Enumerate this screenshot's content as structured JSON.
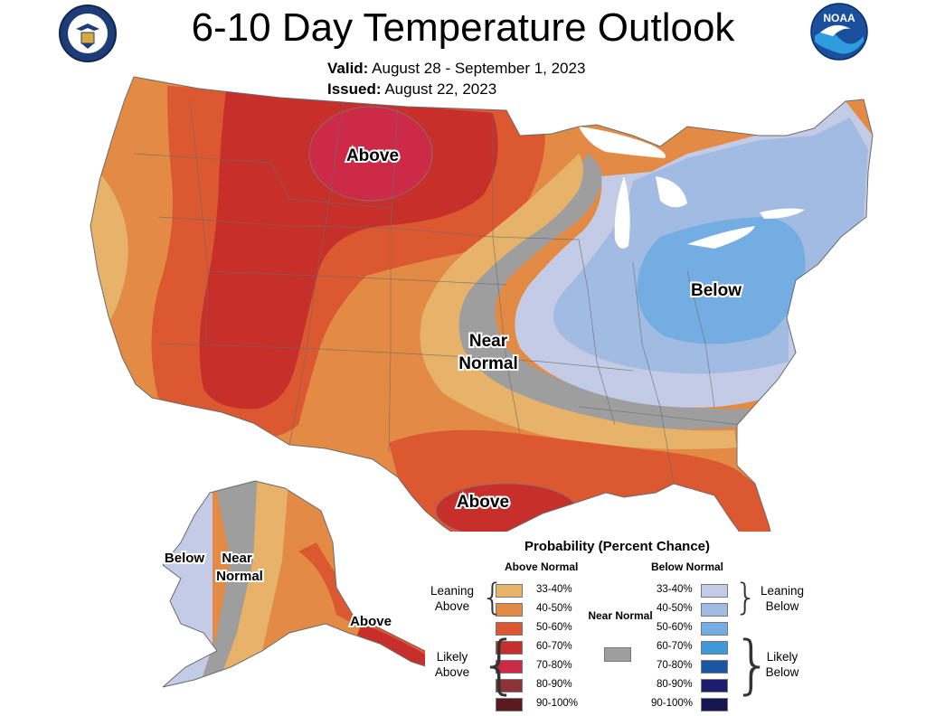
{
  "header": {
    "title": "6-10 Day Temperature Outlook",
    "valid_label": "Valid:",
    "valid_value": "August 28 - September 1, 2023",
    "issued_label": "Issued:",
    "issued_value": "August 22, 2023"
  },
  "logos": {
    "left": "commerce-seal-icon",
    "right": "noaa-logo-icon",
    "right_text": "NOAA"
  },
  "map_labels": {
    "above_north": "Above",
    "near_normal_line1": "Near",
    "near_normal_line2": "Normal",
    "below_east": "Below",
    "above_texas": "Above",
    "ak_below": "Below",
    "ak_near_line1": "Near",
    "ak_near_line2": "Normal",
    "ak_above": "Above"
  },
  "colors": {
    "land_base": "#e38a45",
    "a33": "#e7b36a",
    "a40": "#e38a45",
    "a50": "#dc5830",
    "a60": "#c72f2a",
    "a70": "#cc2a47",
    "a80": "#8e3235",
    "a90": "#5a1a1f",
    "near": "#9e9e9e",
    "b33": "#c3cbe6",
    "b40": "#a2bbe2",
    "b50": "#74ade2",
    "b60": "#3f98d8",
    "b70": "#1b56a3",
    "b80": "#1d1d6e",
    "b90": "#161650",
    "lakes": "#ffffff"
  },
  "legend": {
    "title": "Probability (Percent Chance)",
    "above_header": "Above Normal",
    "below_header": "Below Normal",
    "above": [
      {
        "pct": "33-40%",
        "color": "#e7b36a"
      },
      {
        "pct": "40-50%",
        "color": "#e38a45"
      },
      {
        "pct": "50-60%",
        "color": "#dc5830"
      },
      {
        "pct": "60-70%",
        "color": "#c72f2a"
      },
      {
        "pct": "70-80%",
        "color": "#cc2a47"
      },
      {
        "pct": "80-90%",
        "color": "#8e3235"
      },
      {
        "pct": "90-100%",
        "color": "#5a1a1f"
      }
    ],
    "below": [
      {
        "pct": "33-40%",
        "color": "#c3cbe6"
      },
      {
        "pct": "40-50%",
        "color": "#a2bbe2"
      },
      {
        "pct": "50-60%",
        "color": "#74ade2"
      },
      {
        "pct": "60-70%",
        "color": "#3f98d8"
      },
      {
        "pct": "70-80%",
        "color": "#1b56a3"
      },
      {
        "pct": "80-90%",
        "color": "#1d1d6e"
      },
      {
        "pct": "90-100%",
        "color": "#161650"
      }
    ],
    "leaning_above": "Leaning Above",
    "likely_above": "Likely Above",
    "leaning_below": "Leaning Below",
    "likely_below": "Likely Below",
    "near_label": "Near Normal"
  }
}
